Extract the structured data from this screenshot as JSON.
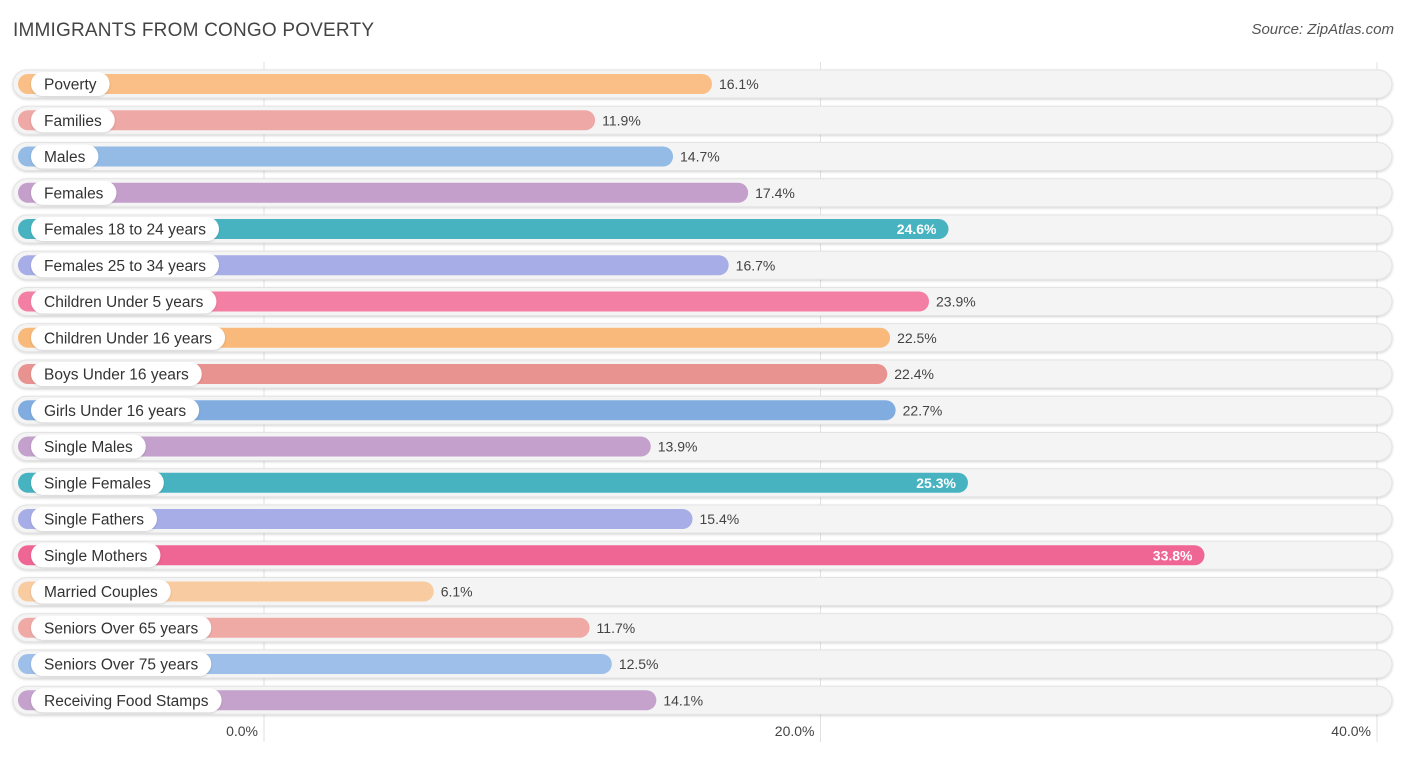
{
  "header": {
    "title": "IMMIGRANTS FROM CONGO POVERTY",
    "source": "Source: ZipAtlas.com"
  },
  "chart_data": {
    "type": "bar",
    "orientation": "horizontal",
    "title": "IMMIGRANTS FROM CONGO POVERTY",
    "xlabel": "",
    "ylabel": "",
    "xlim": [
      0,
      40
    ],
    "unit": "%",
    "ticks": [
      {
        "value": 0,
        "label": "0.0%"
      },
      {
        "value": 20,
        "label": "20.0%"
      },
      {
        "value": 40,
        "label": "40.0%"
      }
    ],
    "categories": [
      "Poverty",
      "Families",
      "Males",
      "Females",
      "Females 18 to 24 years",
      "Females 25 to 34 years",
      "Children Under 5 years",
      "Children Under 16 years",
      "Boys Under 16 years",
      "Girls Under 16 years",
      "Single Males",
      "Single Females",
      "Single Fathers",
      "Single Mothers",
      "Married Couples",
      "Seniors Over 65 years",
      "Seniors Over 75 years",
      "Receiving Food Stamps"
    ],
    "values": [
      16.1,
      11.9,
      14.7,
      17.4,
      24.6,
      16.7,
      23.9,
      22.5,
      22.4,
      22.7,
      13.9,
      25.3,
      15.4,
      33.8,
      6.1,
      11.7,
      12.5,
      14.1
    ],
    "value_labels": [
      "16.1%",
      "11.9%",
      "14.7%",
      "17.4%",
      "24.6%",
      "16.7%",
      "23.9%",
      "22.5%",
      "22.4%",
      "22.7%",
      "13.9%",
      "25.3%",
      "15.4%",
      "33.8%",
      "6.1%",
      "11.7%",
      "12.5%",
      "14.1%"
    ],
    "colors": [
      "#f9bf87",
      "#eea8a6",
      "#93bbe6",
      "#c49fcb",
      "#47b3c1",
      "#a7ade6",
      "#f47fa5",
      "#f8b97a",
      "#e99390",
      "#80ace0",
      "#c4a0cc",
      "#47b3c1",
      "#a7ade6",
      "#ef6593",
      "#f9cba0",
      "#f0aaa6",
      "#9dbfea",
      "#c4a2cc"
    ],
    "label_inside": [
      false,
      false,
      false,
      false,
      true,
      false,
      false,
      false,
      false,
      false,
      false,
      true,
      false,
      true,
      false,
      false,
      false,
      false
    ]
  }
}
